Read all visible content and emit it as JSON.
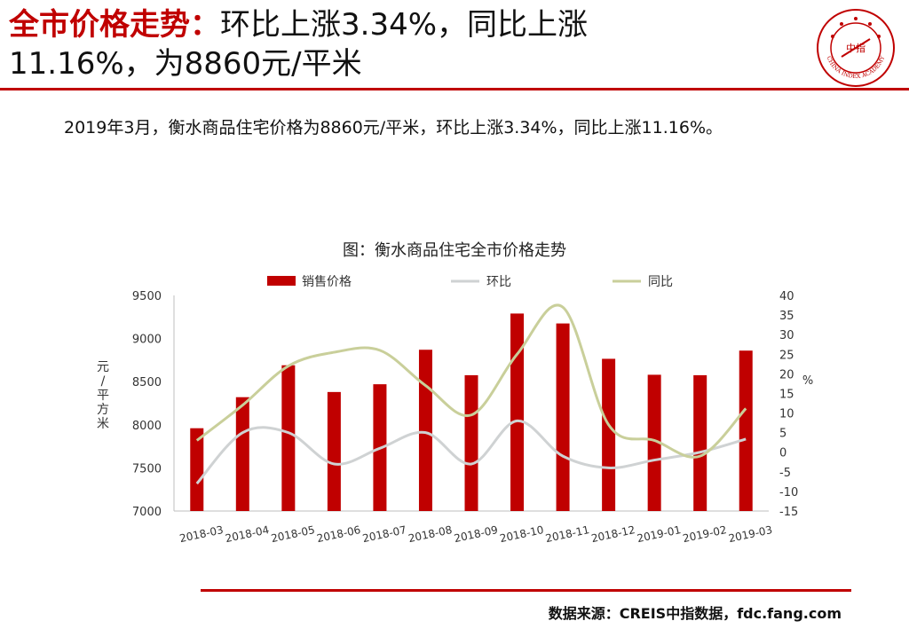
{
  "header": {
    "title_red": "全市价格走势：",
    "title_black_line1": "环比上涨3.34%，同比上涨",
    "title_line2": "11.16%，为8860元/平米"
  },
  "logo": {
    "icon": "china-index-academy-seal",
    "center_text": "中指",
    "ring_text": "CHINA INDEX ACADEMY"
  },
  "summary": "2019年3月，衡水商品住宅价格为8860元/平米，环比上涨3.34%，同比上涨11.16%。",
  "footer": {
    "source": "数据来源：CREIS中指数据，fdc.fang.com"
  },
  "colors": {
    "accent": "#c00000",
    "bar": "#c00000",
    "mom": "#cfd2d3",
    "yoy": "#c9cf9a"
  },
  "chart_data": {
    "type": "bar",
    "title": "图：衡水商品住宅全市价格走势",
    "categories": [
      "2018-03",
      "2018-04",
      "2018-05",
      "2018-06",
      "2018-07",
      "2018-08",
      "2018-09",
      "2018-10",
      "2018-11",
      "2018-12",
      "2019-01",
      "2019-02",
      "2019-03"
    ],
    "ylabel": "元/平方米",
    "y2label": "%",
    "ylim": [
      7000,
      9500
    ],
    "yticks": [
      7000,
      7500,
      8000,
      8500,
      9000,
      9500
    ],
    "y2lim": [
      -15,
      40
    ],
    "y2ticks": [
      -15,
      -10,
      -5,
      0,
      5,
      10,
      15,
      20,
      25,
      30,
      35,
      40
    ],
    "legend_position": "top",
    "series": [
      {
        "name": "销售价格",
        "type": "bar",
        "axis": "left",
        "values": [
          7960,
          8320,
          8690,
          8380,
          8470,
          8870,
          8575,
          9290,
          9175,
          8765,
          8580,
          8575,
          8860
        ]
      },
      {
        "name": "环比",
        "type": "line",
        "axis": "right",
        "values": [
          -8,
          5,
          5,
          -3,
          1,
          5,
          -3,
          8,
          -1,
          -4,
          -2,
          0,
          3.34
        ]
      },
      {
        "name": "同比",
        "type": "line",
        "axis": "right",
        "values": [
          3,
          12,
          22,
          25.5,
          26,
          17,
          9.5,
          25,
          37,
          7,
          3,
          -1,
          11.16
        ]
      }
    ]
  }
}
